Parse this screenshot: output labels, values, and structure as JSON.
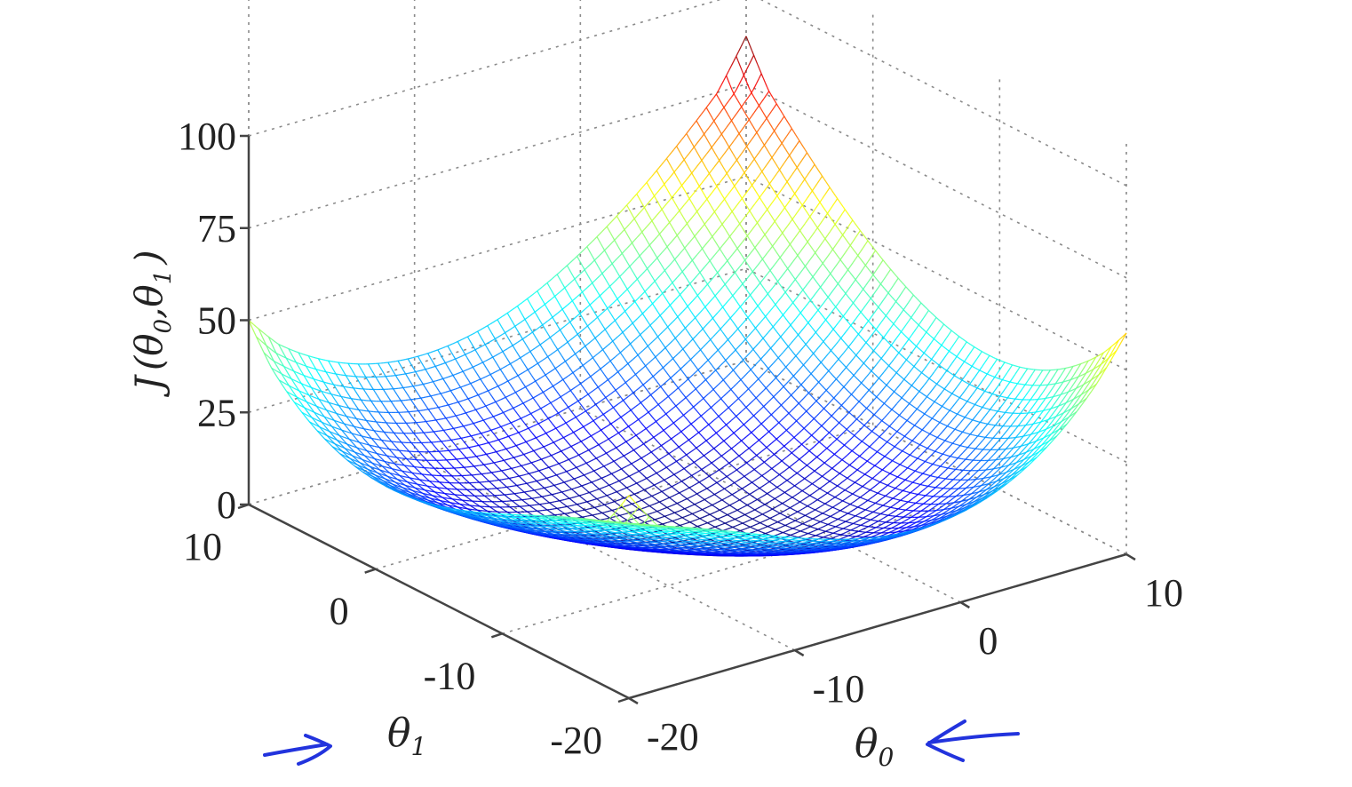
{
  "chart_data": {
    "type": "surface",
    "title": "",
    "xlabel_base": "θ",
    "xlabel_sub": "0",
    "ylabel_base": "θ",
    "ylabel_sub": "1",
    "zlabel": "J(θ0,θ1)",
    "zlabel_parts": {
      "fn": "J",
      "open": "(",
      "var1": "θ",
      "sub1": "0",
      "comma": ",",
      "var2": "θ",
      "sub2": "1",
      "close": ")"
    },
    "xlim": [
      -20,
      10
    ],
    "ylim": [
      -20,
      10
    ],
    "zlim": [
      0,
      100
    ],
    "x_ticks": [
      -20,
      -10,
      0,
      10
    ],
    "y_ticks": [
      -20,
      -10,
      0,
      10
    ],
    "z_ticks": [
      0,
      25,
      50,
      75,
      100
    ],
    "x_tick_labels": [
      "-20",
      "-10",
      "0",
      "10"
    ],
    "y_tick_labels": [
      "-20",
      "-10",
      "0",
      "10"
    ],
    "z_tick_labels": [
      "0",
      "25",
      "50",
      "75",
      "100"
    ],
    "grid": true,
    "colormap": "jet",
    "surface": "bowl-shaped quadratic cost, minimum near θ0 = -5, θ1 = -5",
    "min_point": [
      -5,
      -5
    ],
    "min_value": 0,
    "corner_values": {
      "x10_y10": 88,
      "x-20_y10": 50,
      "x10_y-20": 60,
      "x-20_y-20": 55
    },
    "mesh_lines": 50,
    "colors": {
      "jet_low": "#00008f",
      "jet_high": "#ff0000",
      "pen": "#2233dd"
    }
  }
}
